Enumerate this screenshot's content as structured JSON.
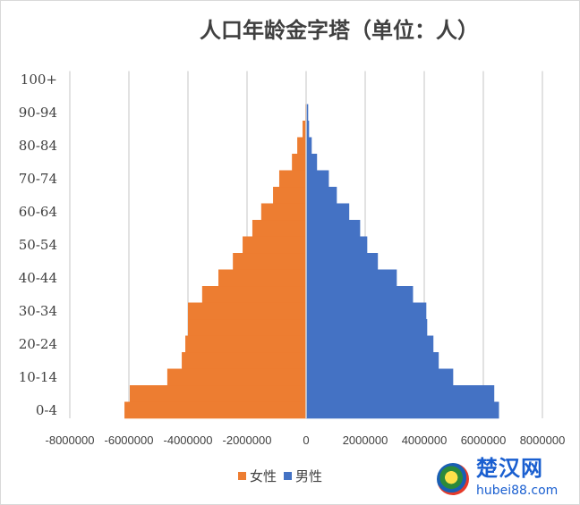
{
  "chart_data": {
    "type": "bar",
    "orientation": "horizontal",
    "title": "人口年龄金字塔（单位：人）",
    "categories": [
      "0-4",
      "5-9",
      "10-14",
      "15-19",
      "20-24",
      "25-29",
      "30-34",
      "35-39",
      "40-44",
      "45-49",
      "50-54",
      "55-59",
      "60-64",
      "65-69",
      "70-74",
      "75-79",
      "80-84",
      "85-89",
      "90-94",
      "95-99",
      "100+"
    ],
    "category_tick_labels": [
      "0-4",
      "10-14",
      "20-24",
      "30-34",
      "40-44",
      "50-54",
      "60-64",
      "70-74",
      "80-84",
      "90-94",
      "100+"
    ],
    "series": [
      {
        "name": "女性",
        "color": "#ED7D31",
        "values": [
          -6150000,
          -5970000,
          -4700000,
          -4210000,
          -4090000,
          -4000000,
          -4000000,
          -3520000,
          -2970000,
          -2480000,
          -2150000,
          -1820000,
          -1520000,
          -1120000,
          -910000,
          -480000,
          -300000,
          -120000,
          -30000,
          -5000,
          -1000
        ]
      },
      {
        "name": "男性",
        "color": "#4472C4",
        "values": [
          6530000,
          6370000,
          4980000,
          4490000,
          4310000,
          4100000,
          4070000,
          3620000,
          3070000,
          2430000,
          2070000,
          1830000,
          1460000,
          1040000,
          770000,
          370000,
          190000,
          100000,
          70000,
          10000,
          1000
        ]
      }
    ],
    "xlim": [
      -8000000,
      8000000
    ],
    "x_ticks": [
      -8000000,
      -6000000,
      -4000000,
      -2000000,
      0,
      2000000,
      4000000,
      6000000,
      8000000
    ],
    "x_tick_labels": [
      "-8000000",
      "-6000000",
      "-4000000",
      "-2000000",
      "0",
      "2000000",
      "4000000",
      "6000000",
      "8000000"
    ],
    "grid": true,
    "legend_position": "bottom"
  },
  "watermark": {
    "name_cn": "楚汉网",
    "domain": "hubei88.com"
  }
}
